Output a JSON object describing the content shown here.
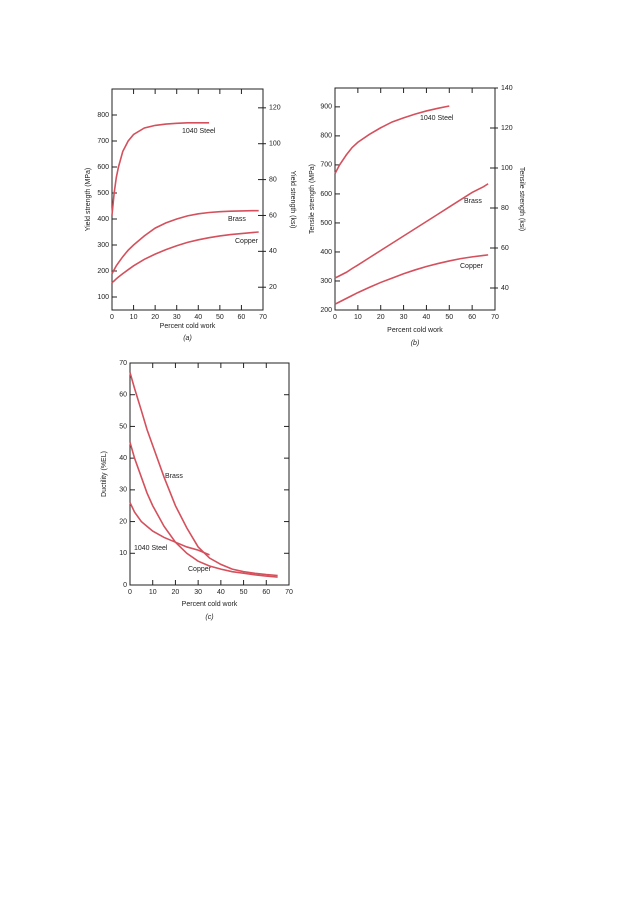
{
  "chart_data": [
    {
      "type": "line",
      "caption": "(a)",
      "x_label": "Percent cold work",
      "y_label": "Yield strength (MPa)",
      "y2_label": "Yield strength (ksi)",
      "x": [
        0,
        1,
        2,
        3,
        5,
        7.5,
        10,
        15,
        20,
        25,
        30,
        35,
        40,
        45,
        50,
        55,
        60,
        65,
        68
      ],
      "xlim": [
        0,
        70
      ],
      "xticks": [
        0,
        10,
        20,
        30,
        40,
        50,
        60,
        70
      ],
      "ylim": [
        50,
        900
      ],
      "yticks": [
        100,
        200,
        300,
        400,
        500,
        600,
        700,
        800
      ],
      "y2lim": [
        7.3,
        130.5
      ],
      "y2ticks": [
        20,
        40,
        60,
        80,
        100,
        120
      ],
      "series": [
        {
          "name": "1040 Steel",
          "color": "#d4505c",
          "values": [
            415,
            500,
            560,
            600,
            660,
            700,
            725,
            750,
            760,
            765,
            768,
            770,
            770,
            770,
            null,
            null,
            null,
            null,
            null
          ]
        },
        {
          "name": "Brass",
          "color": "#d4505c",
          "values": [
            190,
            205,
            220,
            232,
            255,
            280,
            300,
            335,
            365,
            385,
            400,
            412,
            420,
            425,
            428,
            430,
            431,
            432,
            432
          ]
        },
        {
          "name": "Copper",
          "color": "#d4505c",
          "values": [
            155,
            162,
            170,
            177,
            190,
            205,
            220,
            245,
            265,
            282,
            297,
            310,
            320,
            328,
            335,
            340,
            344,
            348,
            350
          ]
        }
      ]
    },
    {
      "type": "line",
      "caption": "(b)",
      "x_label": "Percent cold work",
      "y_label": "Tensile strength (MPa)",
      "y2_label": "Tensile strength (ksi)",
      "x": [
        0,
        2,
        5,
        7.5,
        10,
        15,
        20,
        25,
        30,
        35,
        40,
        45,
        50,
        55,
        60,
        65,
        67
      ],
      "xlim": [
        0,
        70
      ],
      "xticks": [
        0,
        10,
        20,
        30,
        40,
        50,
        60,
        70
      ],
      "ylim": [
        200,
        965
      ],
      "yticks": [
        200,
        300,
        400,
        500,
        600,
        700,
        800,
        900
      ],
      "y2lim": [
        29,
        140
      ],
      "y2ticks": [
        40,
        60,
        80,
        100,
        120,
        140
      ],
      "series": [
        {
          "name": "1040 Steel",
          "color": "#d4505c",
          "values": [
            670,
            700,
            735,
            760,
            778,
            805,
            828,
            848,
            862,
            875,
            886,
            895,
            903,
            null,
            null,
            null,
            null
          ]
        },
        {
          "name": "Brass",
          "color": "#d4505c",
          "values": [
            310,
            318,
            330,
            343,
            355,
            380,
            405,
            430,
            455,
            480,
            505,
            530,
            555,
            580,
            605,
            625,
            635
          ]
        },
        {
          "name": "Copper",
          "color": "#d4505c",
          "values": [
            220,
            228,
            240,
            250,
            260,
            278,
            295,
            310,
            325,
            338,
            350,
            360,
            369,
            377,
            383,
            388,
            390
          ]
        }
      ]
    },
    {
      "type": "line",
      "caption": "(c)",
      "x_label": "Percent cold work",
      "y_label": "Ductility (%EL)",
      "x": [
        0,
        2,
        5,
        7.5,
        10,
        15,
        20,
        25,
        30,
        35,
        40,
        45,
        50,
        55,
        60,
        65
      ],
      "xlim": [
        0,
        70
      ],
      "xticks": [
        0,
        10,
        20,
        30,
        40,
        50,
        60,
        70
      ],
      "ylim": [
        0,
        70
      ],
      "yticks": [
        0,
        10,
        20,
        30,
        40,
        50,
        60,
        70
      ],
      "series": [
        {
          "name": "Brass",
          "color": "#d4505c",
          "values": [
            67,
            62,
            55,
            49,
            44,
            34,
            25,
            18,
            12,
            8.5,
            6.5,
            5,
            4.2,
            3.7,
            3.3,
            3
          ]
        },
        {
          "name": "1040 Steel",
          "color": "#d4505c",
          "values": [
            26,
            23,
            20,
            18.5,
            17,
            15,
            13.5,
            12,
            11,
            9.5,
            null,
            null,
            null,
            null,
            null,
            null
          ]
        },
        {
          "name": "Copper",
          "color": "#d4505c",
          "values": [
            45,
            40,
            34,
            29,
            25,
            18.5,
            13.5,
            10,
            7.5,
            6,
            5,
            4.2,
            3.7,
            3.2,
            2.8,
            2.5
          ]
        }
      ]
    }
  ]
}
